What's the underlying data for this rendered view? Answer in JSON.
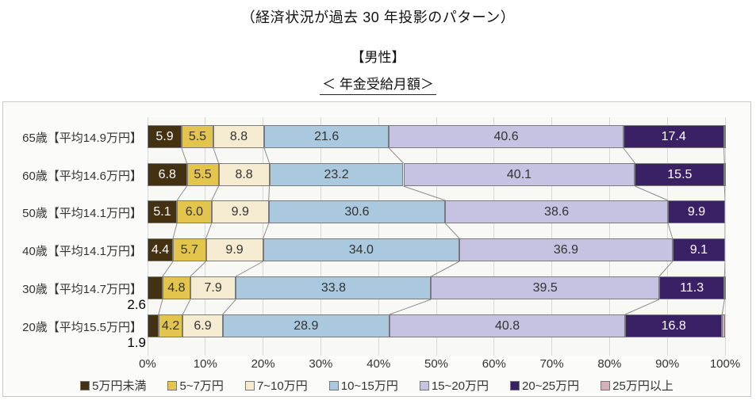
{
  "header": {
    "title_line1": "（経済状況が過去 30 年投影のパターン）",
    "title_line2": "【男性】",
    "title_line3": "＜ 年金受給月額＞"
  },
  "chart_data": {
    "type": "bar",
    "variant": "horizontal-stacked-100pct",
    "title": "年金受給月額",
    "unit": "%",
    "grid": true,
    "legend_position": "bottom",
    "xlim": [
      0,
      100
    ],
    "x_ticks": [
      "0%",
      "10%",
      "20%",
      "30%",
      "40%",
      "50%",
      "60%",
      "70%",
      "80%",
      "90%",
      "100%"
    ],
    "categories": [
      "65歳【平均14.9万円】",
      "60歳【平均14.6万円】",
      "50歳【平均14.1万円】",
      "40歳【平均14.1万円】",
      "30歳【平均14.7万円】",
      "20歳【平均15.5万円】"
    ],
    "series": [
      {
        "name": "5万円未満",
        "color": "#443112",
        "dot_color": "",
        "label_color": "#ffffff",
        "values": [
          5.9,
          6.8,
          5.1,
          4.4,
          2.6,
          1.9
        ]
      },
      {
        "name": "5~7万円",
        "color": "#e3c44c",
        "dot_color": "#f2e193",
        "label_color": "#333333",
        "values": [
          5.5,
          5.5,
          6.0,
          5.7,
          4.8,
          4.2
        ]
      },
      {
        "name": "7~10万円",
        "color": "#f4ebd1",
        "dot_color": "",
        "label_color": "#333333",
        "values": [
          8.8,
          8.8,
          9.9,
          9.9,
          7.9,
          6.9
        ]
      },
      {
        "name": "10~15万円",
        "color": "#aac8de",
        "dot_color": "#eef5fa",
        "label_color": "#333333",
        "values": [
          21.6,
          23.2,
          30.6,
          34.0,
          33.8,
          28.9
        ]
      },
      {
        "name": "15~20万円",
        "color": "#c6c2e2",
        "dot_color": "",
        "label_color": "#333333",
        "values": [
          40.6,
          40.1,
          38.6,
          36.9,
          39.5,
          40.8
        ]
      },
      {
        "name": "20~25万円",
        "color": "#3a2166",
        "dot_color": "#a894cc",
        "label_color": "#ffffff",
        "values": [
          17.4,
          15.5,
          9.9,
          9.1,
          11.3,
          16.8
        ]
      },
      {
        "name": "25万円以上",
        "color": "#d4b0bb",
        "dot_color": "",
        "label_color": "#333333",
        "values": [
          0.2,
          0.1,
          0.0,
          0.0,
          0.1,
          0.5
        ]
      }
    ],
    "outside_value_labels": [
      {
        "category_index": 4,
        "series_index": 0,
        "text": "2.6"
      },
      {
        "category_index": 5,
        "series_index": 0,
        "text": "1.9"
      }
    ]
  }
}
